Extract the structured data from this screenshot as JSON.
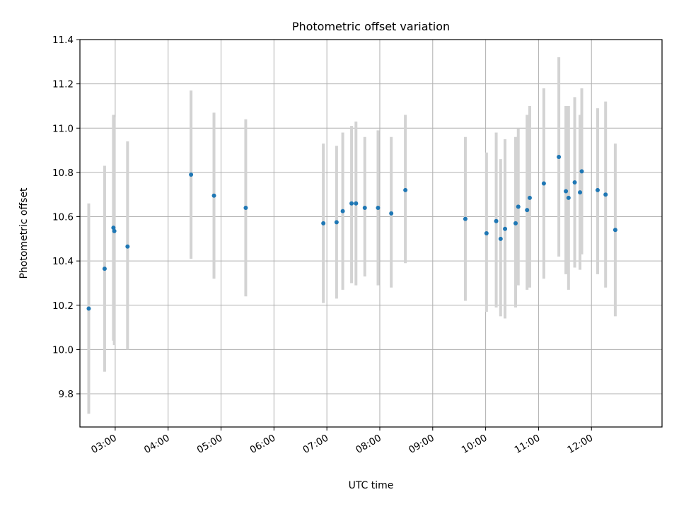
{
  "chart_data": {
    "type": "scatter",
    "title": "Photometric offset variation",
    "xlabel": "UTC time",
    "ylabel": "Photometric offset",
    "x_axis": {
      "type": "time",
      "range": [
        "02:20",
        "13:20"
      ],
      "ticks": [
        "03:00",
        "04:00",
        "05:00",
        "06:00",
        "07:00",
        "08:00",
        "09:00",
        "10:00",
        "11:00",
        "12:00"
      ]
    },
    "y_axis": {
      "range": [
        9.65,
        11.4
      ],
      "ticks": [
        "9.8",
        "10.0",
        "10.2",
        "10.4",
        "10.6",
        "10.8",
        "11.0",
        "11.2",
        "11.4"
      ]
    },
    "grid": true,
    "colors": {
      "points": "#1f77b4",
      "error_bars": "#d3d3d3",
      "grid": "#b0b0b0"
    },
    "points": [
      {
        "t": "02:30",
        "y": 10.185,
        "lo": 9.71,
        "hi": 10.66
      },
      {
        "t": "02:48",
        "y": 10.365,
        "lo": 9.9,
        "hi": 10.83
      },
      {
        "t": "02:58",
        "y": 10.55,
        "lo": 10.04,
        "hi": 11.06
      },
      {
        "t": "02:59",
        "y": 10.535,
        "lo": 10.02,
        "hi": 11.05
      },
      {
        "t": "03:14",
        "y": 10.465,
        "lo": 10.0,
        "hi": 10.94
      },
      {
        "t": "04:26",
        "y": 10.79,
        "lo": 10.41,
        "hi": 11.17
      },
      {
        "t": "04:52",
        "y": 10.695,
        "lo": 10.32,
        "hi": 11.07
      },
      {
        "t": "05:28",
        "y": 10.64,
        "lo": 10.24,
        "hi": 11.04
      },
      {
        "t": "06:56",
        "y": 10.57,
        "lo": 10.21,
        "hi": 10.93
      },
      {
        "t": "07:11",
        "y": 10.575,
        "lo": 10.23,
        "hi": 10.92
      },
      {
        "t": "07:18",
        "y": 10.625,
        "lo": 10.27,
        "hi": 10.98
      },
      {
        "t": "07:28",
        "y": 10.66,
        "lo": 10.3,
        "hi": 11.01
      },
      {
        "t": "07:33",
        "y": 10.66,
        "lo": 10.29,
        "hi": 11.03
      },
      {
        "t": "07:43",
        "y": 10.64,
        "lo": 10.33,
        "hi": 10.96
      },
      {
        "t": "07:58",
        "y": 10.64,
        "lo": 10.29,
        "hi": 10.99
      },
      {
        "t": "08:13",
        "y": 10.615,
        "lo": 10.28,
        "hi": 10.96
      },
      {
        "t": "08:29",
        "y": 10.72,
        "lo": 10.39,
        "hi": 11.06
      },
      {
        "t": "09:37",
        "y": 10.59,
        "lo": 10.22,
        "hi": 10.96
      },
      {
        "t": "10:01",
        "y": 10.525,
        "lo": 10.17,
        "hi": 10.89
      },
      {
        "t": "10:12",
        "y": 10.58,
        "lo": 10.19,
        "hi": 10.98
      },
      {
        "t": "10:17",
        "y": 10.5,
        "lo": 10.15,
        "hi": 10.86
      },
      {
        "t": "10:22",
        "y": 10.545,
        "lo": 10.14,
        "hi": 10.95
      },
      {
        "t": "10:34",
        "y": 10.57,
        "lo": 10.19,
        "hi": 10.96
      },
      {
        "t": "10:37",
        "y": 10.645,
        "lo": 10.29,
        "hi": 11.0
      },
      {
        "t": "10:47",
        "y": 10.63,
        "lo": 10.27,
        "hi": 11.06
      },
      {
        "t": "10:50",
        "y": 10.685,
        "lo": 10.28,
        "hi": 11.1
      },
      {
        "t": "11:06",
        "y": 10.75,
        "lo": 10.32,
        "hi": 11.18
      },
      {
        "t": "11:23",
        "y": 10.87,
        "lo": 10.42,
        "hi": 11.32
      },
      {
        "t": "11:31",
        "y": 10.715,
        "lo": 10.34,
        "hi": 11.1
      },
      {
        "t": "11:34",
        "y": 10.685,
        "lo": 10.27,
        "hi": 11.1
      },
      {
        "t": "11:41",
        "y": 10.755,
        "lo": 10.37,
        "hi": 11.14
      },
      {
        "t": "11:47",
        "y": 10.71,
        "lo": 10.36,
        "hi": 11.06
      },
      {
        "t": "11:49",
        "y": 10.805,
        "lo": 10.43,
        "hi": 11.18
      },
      {
        "t": "12:07",
        "y": 10.72,
        "lo": 10.34,
        "hi": 11.09
      },
      {
        "t": "12:16",
        "y": 10.7,
        "lo": 10.28,
        "hi": 11.12
      },
      {
        "t": "12:27",
        "y": 10.54,
        "lo": 10.15,
        "hi": 10.93
      }
    ]
  }
}
